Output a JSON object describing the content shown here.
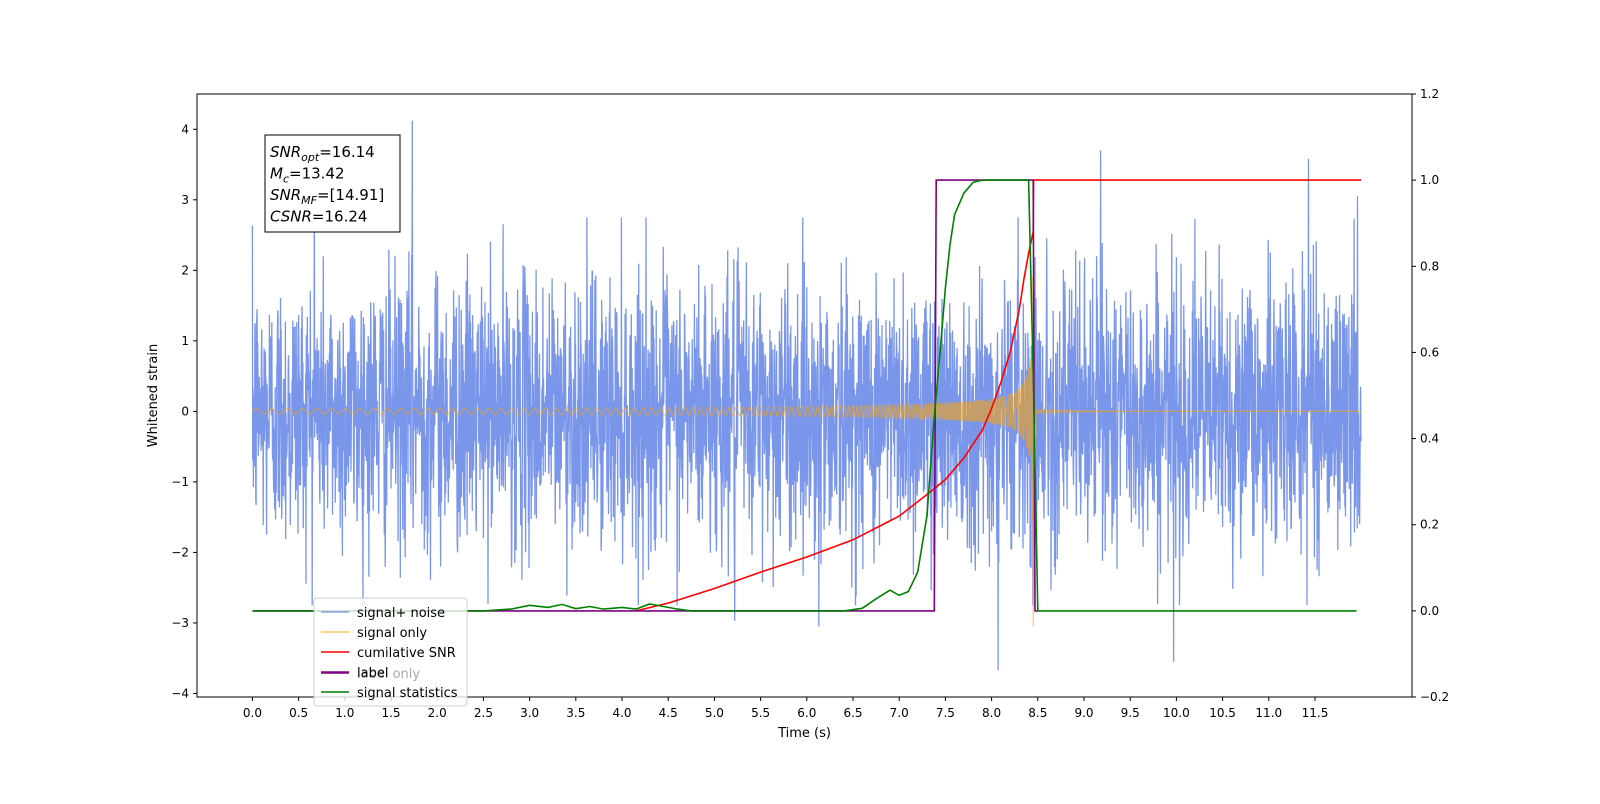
{
  "chart_data": {
    "type": "line",
    "xlabel": "Time (s)",
    "ylabel_left": "Whitened strain",
    "ylabel_right": "",
    "xlim": [
      -0.6,
      12.55
    ],
    "ylim_left": [
      -4.05,
      4.5
    ],
    "ylim_right": [
      -0.2,
      1.2
    ],
    "x_ticks": [
      0.0,
      0.5,
      1.0,
      1.5,
      2.0,
      2.5,
      3.0,
      3.5,
      4.0,
      4.5,
      5.0,
      5.5,
      6.0,
      6.5,
      7.0,
      7.5,
      8.0,
      8.5,
      9.0,
      9.5,
      10.0,
      10.5,
      11.0,
      11.5
    ],
    "x_tick_labels": [
      "0.0",
      "0.5",
      "1.0",
      "1.5",
      "2.0",
      "2.5",
      "3.0",
      "3.5",
      "4.0",
      "4.5",
      "5.0",
      "5.5",
      "6.0",
      "6.5",
      "7.0",
      "7.5",
      "8.0",
      "8.5",
      "9.0",
      "9.5",
      "10.0",
      "10.5",
      "11.0",
      "11.5"
    ],
    "y_left_ticks": [
      4,
      3,
      2,
      1,
      0,
      -1,
      -2,
      -3,
      -4
    ],
    "y_left_tick_labels": [
      "4",
      "3",
      "2",
      "1",
      "0",
      "−1",
      "−2",
      "−3",
      "−4"
    ],
    "y_right_ticks": [
      1.2,
      1.0,
      0.8,
      0.6,
      0.4,
      0.2,
      0.0,
      -0.2
    ],
    "y_right_tick_labels": [
      "1.2",
      "1.0",
      "0.8",
      "0.6",
      "0.4",
      "0.2",
      "0.0",
      "−0.2"
    ],
    "annotation": {
      "lines": [
        {
          "main": "SNR",
          "sub": "opt",
          "value": "=16.14"
        },
        {
          "main": "M",
          "sub": "c",
          "value": "=13.42"
        },
        {
          "main": "SNR",
          "sub": "MF",
          "value": "=[14.91]"
        },
        {
          "main": "CSNR",
          "sub": "",
          "value": "=16.24"
        }
      ]
    },
    "legend": {
      "placement": "lower-left",
      "entries": [
        {
          "label": "signal+ noise",
          "color": "#4169e1"
        },
        {
          "label": "signal only",
          "color": "#ffa500"
        },
        {
          "label": "cumilative SNR",
          "color": "#ff0000"
        },
        {
          "label": "label only",
          "color": "#800080"
        },
        {
          "label": "label",
          "color": "#800080"
        },
        {
          "label": "signal statistics",
          "color": "#008000"
        }
      ]
    },
    "series": [
      {
        "name": "signal+ noise",
        "axis": "left",
        "color": "#4169e1",
        "kind": "noise",
        "x_range": [
          0.0,
          12.0
        ],
        "sigma": 0.95,
        "peaks": [
          [
            1.73,
            4.12
          ],
          [
            8.07,
            -3.67
          ],
          [
            9.18,
            3.7
          ],
          [
            9.97,
            -3.55
          ],
          [
            11.43,
            3.58
          ],
          [
            0.67,
            3.37
          ],
          [
            5.22,
            -2.97
          ],
          [
            6.13,
            -3.05
          ],
          [
            11.96,
            3.05
          ],
          [
            7.38,
            -2.62
          ]
        ]
      },
      {
        "name": "signal only",
        "axis": "left",
        "color": "#ffa500",
        "kind": "chirp",
        "t_merge": 8.45,
        "peak": 2.75,
        "min_at_merge": -3.05
      },
      {
        "name": "cumilative SNR",
        "axis": "right",
        "color": "#ff0000",
        "x": [
          4.15,
          4.5,
          5.0,
          5.5,
          6.0,
          6.5,
          7.0,
          7.3,
          7.5,
          7.7,
          7.9,
          8.0,
          8.1,
          8.2,
          8.3,
          8.35,
          8.4,
          8.45,
          8.455,
          12.0
        ],
        "y": [
          0.0,
          0.018,
          0.052,
          0.09,
          0.125,
          0.165,
          0.22,
          0.27,
          0.305,
          0.355,
          0.42,
          0.47,
          0.53,
          0.6,
          0.7,
          0.77,
          0.83,
          0.88,
          1.0,
          1.0
        ]
      },
      {
        "name": "label",
        "axis": "right",
        "color": "#800080",
        "x": [
          0.0,
          7.38,
          7.4,
          8.45,
          8.47,
          8.5
        ],
        "y": [
          0.0,
          0.0,
          1.0,
          1.0,
          0.0,
          0.0
        ]
      },
      {
        "name": "signal statistics",
        "axis": "right",
        "color": "#008000",
        "x": [
          0.0,
          2.5,
          2.8,
          3.0,
          3.2,
          3.35,
          3.5,
          3.65,
          3.8,
          4.0,
          4.15,
          4.3,
          4.45,
          4.6,
          4.75,
          4.9,
          6.4,
          6.6,
          6.75,
          6.9,
          7.0,
          7.1,
          7.2,
          7.3,
          7.38,
          7.45,
          7.5,
          7.55,
          7.6,
          7.7,
          7.8,
          7.9,
          8.0,
          8.4,
          8.45,
          8.5,
          11.95
        ],
        "y": [
          0.0,
          0.0,
          0.004,
          0.013,
          0.008,
          0.015,
          0.005,
          0.01,
          0.004,
          0.008,
          0.004,
          0.016,
          0.01,
          0.004,
          0.0,
          0.0,
          0.0,
          0.006,
          0.028,
          0.048,
          0.036,
          0.045,
          0.09,
          0.22,
          0.45,
          0.62,
          0.75,
          0.85,
          0.92,
          0.97,
          0.995,
          1.0,
          1.0,
          1.0,
          0.55,
          0.0,
          0.0
        ]
      }
    ]
  }
}
